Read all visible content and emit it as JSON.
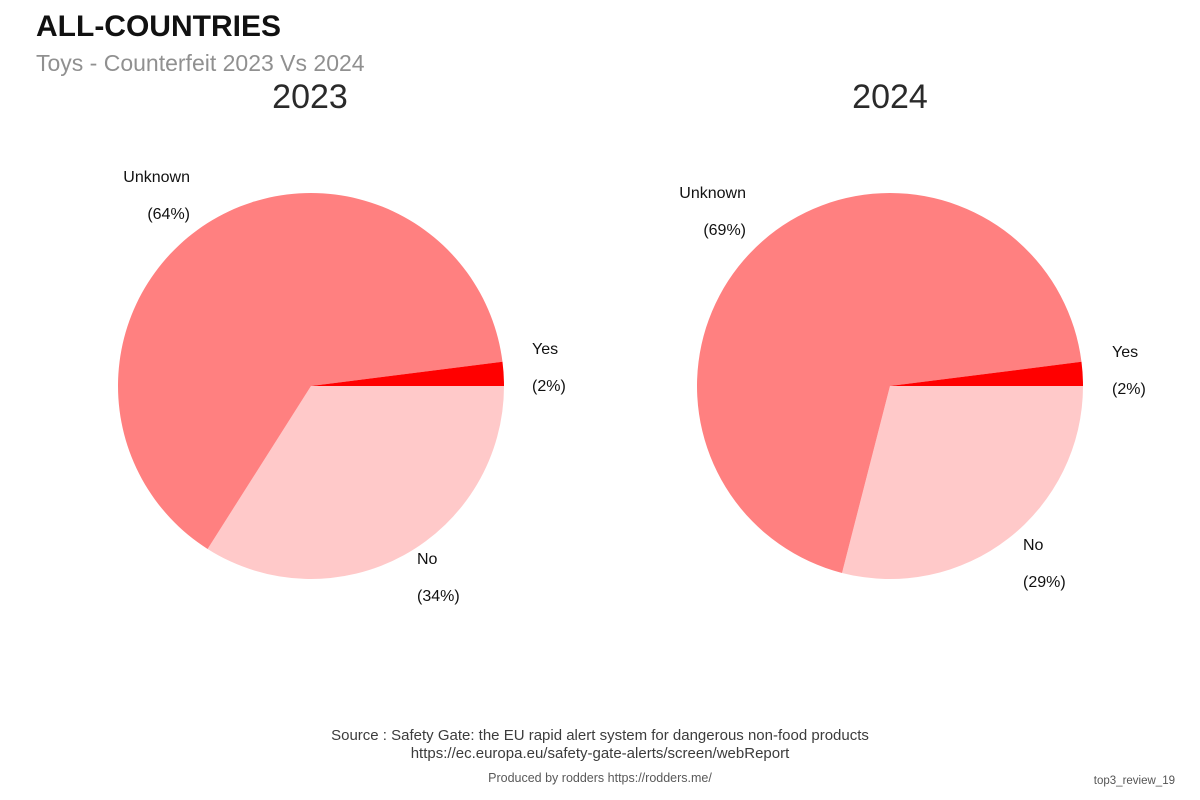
{
  "header": {
    "title": "ALL-COUNTRIES",
    "subtitle": "Toys - Counterfeit 2023 Vs 2024"
  },
  "chart_data": [
    {
      "type": "pie",
      "title": "2023",
      "units": "percent",
      "start_angle": "east (3 o'clock)",
      "direction": "clockwise",
      "legend": "none (labels outside slices)",
      "slices": [
        {
          "label": "No",
          "value": 34,
          "pct_text": "(34%)",
          "color": "#FFC9C9"
        },
        {
          "label": "Unknown",
          "value": 64,
          "pct_text": "(64%)",
          "color": "#FF8080"
        },
        {
          "label": "Yes",
          "value": 2,
          "pct_text": "(2%)",
          "color": "#FF0000"
        }
      ]
    },
    {
      "type": "pie",
      "title": "2024",
      "units": "percent",
      "start_angle": "east (3 o'clock)",
      "direction": "clockwise",
      "legend": "none (labels outside slices)",
      "slices": [
        {
          "label": "No",
          "value": 29,
          "pct_text": "(29%)",
          "color": "#FFC9C9"
        },
        {
          "label": "Unknown",
          "value": 69,
          "pct_text": "(69%)",
          "color": "#FF8080"
        },
        {
          "label": "Yes",
          "value": 2,
          "pct_text": "(2%)",
          "color": "#FF0000"
        }
      ]
    }
  ],
  "footer": {
    "source_line1": "Source : Safety Gate: the EU rapid alert system for dangerous non-food products",
    "source_line2": "https://ec.europa.eu/safety-gate-alerts/screen/webReport",
    "produced_by": "Produced by rodders https://rodders.me/",
    "watermark": "top3_review_19"
  }
}
